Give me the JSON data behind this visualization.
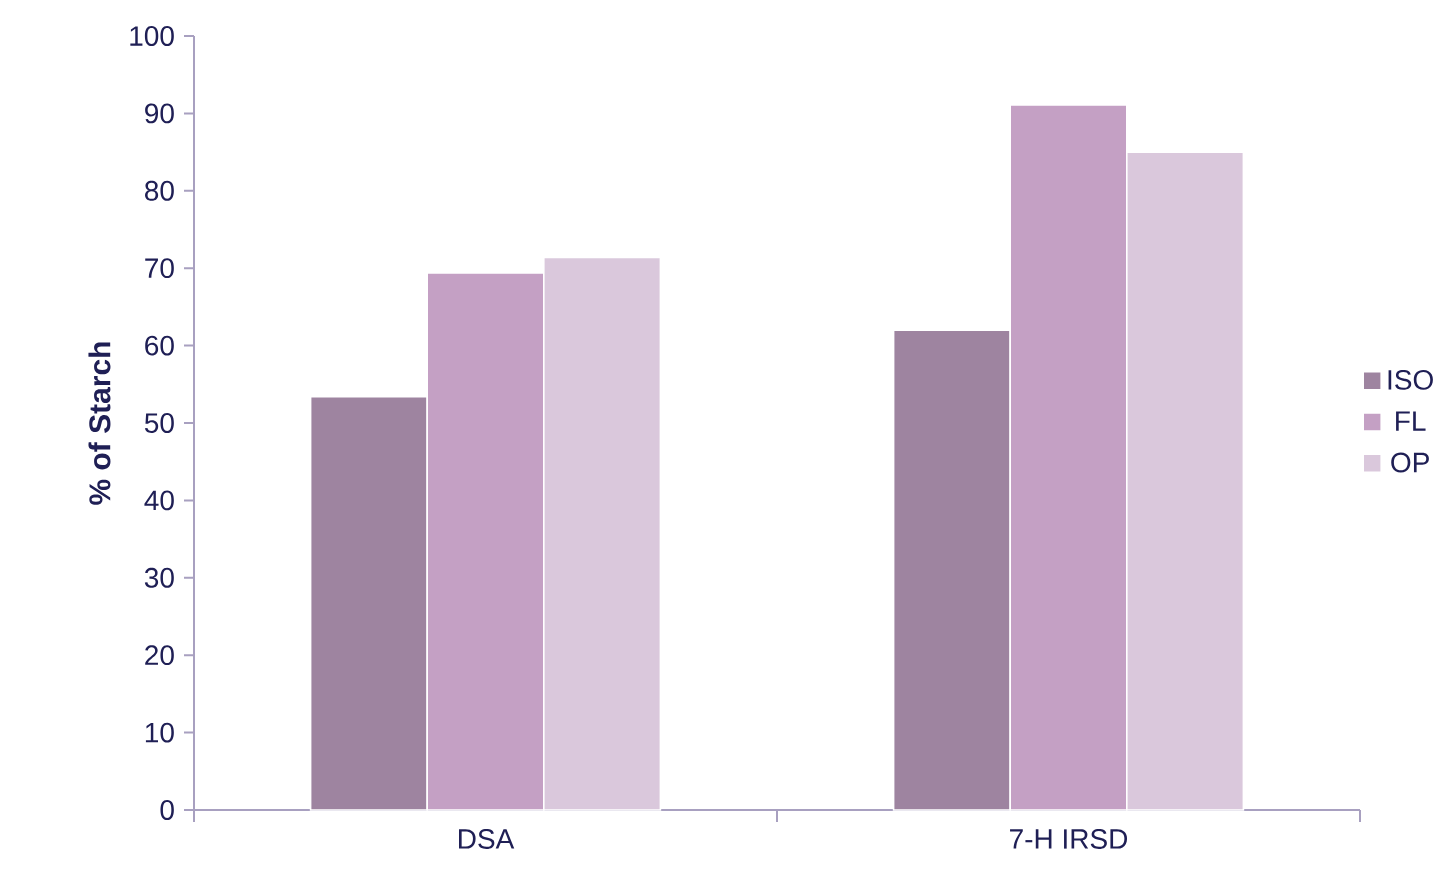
{
  "chart_data": {
    "type": "bar",
    "ylabel": "%  of Starch",
    "categories": [
      "DSA",
      "7-H IRSD"
    ],
    "series": [
      {
        "name": "ISO",
        "color": "#9e84a0",
        "values": [
          53.4,
          62.0
        ]
      },
      {
        "name": "FL",
        "color": "#c4a0c4",
        "values": [
          69.4,
          91.1
        ]
      },
      {
        "name": "OP",
        "color": "#dac8dc",
        "values": [
          71.4,
          85.0
        ]
      }
    ],
    "ylim": [
      0,
      100
    ],
    "yticks": [
      0,
      10,
      20,
      30,
      40,
      50,
      60,
      70,
      80,
      90,
      100
    ],
    "grid": false,
    "legend": "right"
  }
}
